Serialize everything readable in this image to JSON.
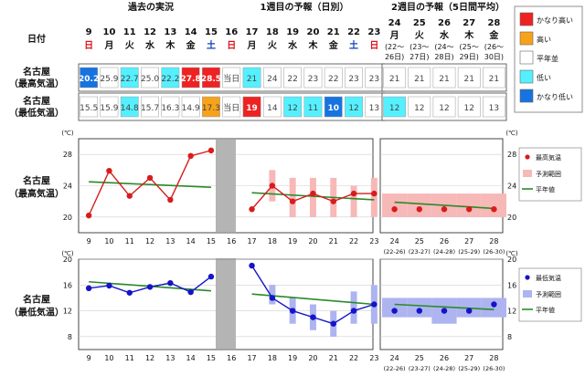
{
  "header": {
    "date_label": "日付",
    "past_title": "過去の実況",
    "week1_title": "1週目の予報（日別）",
    "week2_title": "2週目の予報（5日間平均）"
  },
  "legend_colors": [
    {
      "label": "かなり高い",
      "color": "#ee2222"
    },
    {
      "label": "高い",
      "color": "#f6a21a"
    },
    {
      "label": "平年並",
      "color": "#ffffff"
    },
    {
      "label": "低い",
      "color": "#55f0ff"
    },
    {
      "label": "かなり低い",
      "color": "#1673e0"
    }
  ],
  "days": [
    {
      "d": "9",
      "w": "日",
      "wc": "#e0101a"
    },
    {
      "d": "10",
      "w": "月",
      "wc": "#111111"
    },
    {
      "d": "11",
      "w": "火",
      "wc": "#111111"
    },
    {
      "d": "12",
      "w": "水",
      "wc": "#111111"
    },
    {
      "d": "13",
      "w": "木",
      "wc": "#111111"
    },
    {
      "d": "14",
      "w": "金",
      "wc": "#111111"
    },
    {
      "d": "15",
      "w": "土",
      "wc": "#1040c0"
    },
    {
      "d": "16",
      "w": "日",
      "wc": "#e0101a"
    },
    {
      "d": "17",
      "w": "月",
      "wc": "#111111"
    },
    {
      "d": "18",
      "w": "火",
      "wc": "#111111"
    },
    {
      "d": "19",
      "w": "水",
      "wc": "#111111"
    },
    {
      "d": "20",
      "w": "木",
      "wc": "#111111"
    },
    {
      "d": "21",
      "w": "金",
      "wc": "#111111"
    },
    {
      "d": "22",
      "w": "土",
      "wc": "#1040c0"
    },
    {
      "d": "23",
      "w": "日",
      "wc": "#e0101a"
    }
  ],
  "week2_days": [
    {
      "d": "24",
      "w": "月",
      "r1": "(22〜",
      "r2": "26日)"
    },
    {
      "d": "25",
      "w": "火",
      "r1": "(23〜",
      "r2": "27日)"
    },
    {
      "d": "26",
      "w": "水",
      "r1": "(24〜",
      "r2": "28日)"
    },
    {
      "d": "27",
      "w": "木",
      "r1": "(25〜",
      "r2": "29日)"
    },
    {
      "d": "28",
      "w": "金",
      "r1": "(26〜",
      "r2": "30日)"
    }
  ],
  "rows": [
    {
      "label1": "名古屋",
      "label2": "（最高気温）",
      "cells": [
        {
          "v": "20.2",
          "bg": "#1673e0",
          "fg": "#ffffff",
          "b": true
        },
        {
          "v": "25.9",
          "bg": "#ffffff",
          "fg": "#444444",
          "b": false
        },
        {
          "v": "22.7",
          "bg": "#55f0ff",
          "fg": "#444444",
          "b": false
        },
        {
          "v": "25.0",
          "bg": "#ffffff",
          "fg": "#444444",
          "b": false
        },
        {
          "v": "22.2",
          "bg": "#55f0ff",
          "fg": "#444444",
          "b": false
        },
        {
          "v": "27.8",
          "bg": "#ee2222",
          "fg": "#ffffff",
          "b": true
        },
        {
          "v": "28.5",
          "bg": "#ee2222",
          "fg": "#ffffff",
          "b": true
        },
        {
          "v": "当日",
          "bg": "#ffffff",
          "fg": "#444444",
          "b": false
        },
        {
          "v": "21",
          "bg": "#55f0ff",
          "fg": "#444444",
          "b": false
        },
        {
          "v": "24",
          "bg": "#ffffff",
          "fg": "#444444",
          "b": false
        },
        {
          "v": "22",
          "bg": "#ffffff",
          "fg": "#444444",
          "b": false
        },
        {
          "v": "23",
          "bg": "#ffffff",
          "fg": "#444444",
          "b": false
        },
        {
          "v": "22",
          "bg": "#ffffff",
          "fg": "#444444",
          "b": false
        },
        {
          "v": "23",
          "bg": "#ffffff",
          "fg": "#444444",
          "b": false
        },
        {
          "v": "23",
          "bg": "#ffffff",
          "fg": "#444444",
          "b": false
        }
      ],
      "week2": [
        {
          "v": "21",
          "bg": "#ffffff",
          "fg": "#444444",
          "b": false
        },
        {
          "v": "21",
          "bg": "#ffffff",
          "fg": "#444444",
          "b": false
        },
        {
          "v": "21",
          "bg": "#ffffff",
          "fg": "#444444",
          "b": false
        },
        {
          "v": "21",
          "bg": "#ffffff",
          "fg": "#444444",
          "b": false
        },
        {
          "v": "21",
          "bg": "#ffffff",
          "fg": "#444444",
          "b": false
        }
      ]
    },
    {
      "label1": "名古屋",
      "label2": "（最低気温）",
      "cells": [
        {
          "v": "15.5",
          "bg": "#ffffff",
          "fg": "#444444",
          "b": false
        },
        {
          "v": "15.9",
          "bg": "#ffffff",
          "fg": "#444444",
          "b": false
        },
        {
          "v": "14.8",
          "bg": "#55f0ff",
          "fg": "#444444",
          "b": false
        },
        {
          "v": "15.7",
          "bg": "#ffffff",
          "fg": "#444444",
          "b": false
        },
        {
          "v": "16.3",
          "bg": "#ffffff",
          "fg": "#444444",
          "b": false
        },
        {
          "v": "14.9",
          "bg": "#ffffff",
          "fg": "#444444",
          "b": false
        },
        {
          "v": "17.3",
          "bg": "#f6a21a",
          "fg": "#444444",
          "b": false
        },
        {
          "v": "当日",
          "bg": "#ffffff",
          "fg": "#444444",
          "b": false
        },
        {
          "v": "19",
          "bg": "#ee2222",
          "fg": "#ffffff",
          "b": true
        },
        {
          "v": "14",
          "bg": "#ffffff",
          "fg": "#444444",
          "b": false
        },
        {
          "v": "12",
          "bg": "#55f0ff",
          "fg": "#444444",
          "b": false
        },
        {
          "v": "11",
          "bg": "#55f0ff",
          "fg": "#444444",
          "b": false
        },
        {
          "v": "10",
          "bg": "#1673e0",
          "fg": "#ffffff",
          "b": true
        },
        {
          "v": "12",
          "bg": "#55f0ff",
          "fg": "#444444",
          "b": false
        },
        {
          "v": "13",
          "bg": "#ffffff",
          "fg": "#444444",
          "b": false
        }
      ],
      "week2": [
        {
          "v": "12",
          "bg": "#55f0ff",
          "fg": "#444444",
          "b": false
        },
        {
          "v": "12",
          "bg": "#ffffff",
          "fg": "#444444",
          "b": false
        },
        {
          "v": "12",
          "bg": "#ffffff",
          "fg": "#444444",
          "b": false
        },
        {
          "v": "12",
          "bg": "#ffffff",
          "fg": "#444444",
          "b": false
        },
        {
          "v": "13",
          "bg": "#ffffff",
          "fg": "#444444",
          "b": false
        }
      ]
    }
  ],
  "chart_data": [
    {
      "type": "line",
      "label1": "名古屋",
      "label2": "（最高気温）",
      "unit": "(℃)",
      "ylim": [
        18,
        30
      ],
      "yticks": [
        20,
        24,
        28
      ],
      "obs_x": [
        9,
        10,
        11,
        12,
        13,
        14,
        15
      ],
      "obs": [
        20.2,
        25.9,
        22.7,
        25.0,
        22.2,
        27.8,
        28.5
      ],
      "fc_x": [
        17,
        18,
        19,
        20,
        21,
        22,
        23
      ],
      "fc": [
        21,
        24,
        22,
        23,
        22,
        23,
        23
      ],
      "fc_range": [
        [
          21,
          21
        ],
        [
          22,
          26
        ],
        [
          20,
          25
        ],
        [
          20,
          25
        ],
        [
          20,
          25
        ],
        [
          20,
          24
        ],
        [
          20,
          25
        ]
      ],
      "normal_left": [
        [
          9,
          24.5
        ],
        [
          15,
          23.8
        ]
      ],
      "normal_mid": [
        [
          17,
          23.1
        ],
        [
          23,
          22.2
        ]
      ],
      "week2_x": [
        "24",
        "25",
        "26",
        "27",
        "28"
      ],
      "week2": [
        21,
        21,
        21,
        21,
        21
      ],
      "week2_range": [
        [
          20,
          23
        ],
        [
          20,
          23
        ],
        [
          20,
          23
        ],
        [
          20,
          23
        ],
        [
          20,
          23
        ]
      ],
      "normal_right": [
        [
          24,
          21.9
        ],
        [
          28,
          21.1
        ]
      ],
      "color": "#d81c1c",
      "band_color": "#f7b8b8",
      "legend": [
        "最高気温",
        "予測範囲",
        "平年値"
      ]
    },
    {
      "type": "line",
      "label1": "名古屋",
      "label2": "（最低気温）",
      "unit": "(℃)",
      "ylim": [
        6,
        20
      ],
      "yticks": [
        8,
        12,
        16,
        20
      ],
      "obs_x": [
        9,
        10,
        11,
        12,
        13,
        14,
        15
      ],
      "obs": [
        15.5,
        15.9,
        14.8,
        15.7,
        16.3,
        14.9,
        17.3
      ],
      "fc_x": [
        17,
        18,
        19,
        20,
        21,
        22,
        23
      ],
      "fc": [
        19,
        14,
        12,
        11,
        10,
        12,
        13
      ],
      "fc_range": [
        [
          19,
          19
        ],
        [
          13,
          16
        ],
        [
          10,
          14
        ],
        [
          9,
          13
        ],
        [
          8,
          12
        ],
        [
          10,
          15
        ],
        [
          10,
          16
        ]
      ],
      "normal_left": [
        [
          9,
          16.5
        ],
        [
          15,
          15.1
        ]
      ],
      "normal_mid": [
        [
          17,
          14.6
        ],
        [
          23,
          13.0
        ]
      ],
      "week2_x": [
        "24",
        "25",
        "26",
        "27",
        "28"
      ],
      "week2": [
        12,
        12,
        12,
        12,
        13
      ],
      "week2_range": [
        [
          11,
          14
        ],
        [
          11,
          14
        ],
        [
          10,
          14
        ],
        [
          11,
          14
        ],
        [
          11,
          14
        ]
      ],
      "normal_right": [
        [
          24,
          13.0
        ],
        [
          28,
          12.2
        ]
      ],
      "color": "#1414c8",
      "band_color": "#aeb4f0",
      "legend": [
        "最低気温",
        "予測範囲",
        "平年値"
      ]
    }
  ],
  "x_ranges": [
    {
      "d": "24",
      "r": "(22-26)"
    },
    {
      "d": "25",
      "r": "(23-27)"
    },
    {
      "d": "26",
      "r": "(24-28)"
    },
    {
      "d": "27",
      "r": "(25-29)"
    },
    {
      "d": "28",
      "r": "(26-30)"
    }
  ]
}
